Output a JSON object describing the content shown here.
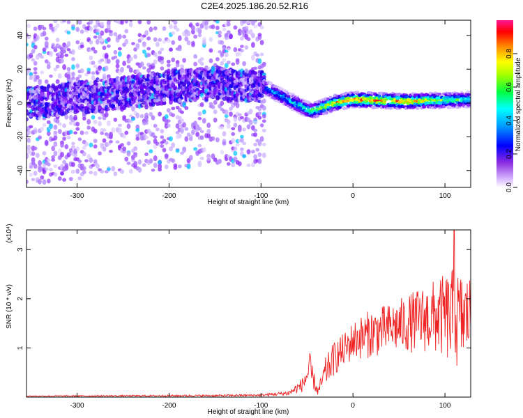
{
  "title": "C2E4.2025.186.20.52.R16",
  "chart_data": [
    {
      "type": "heatmap",
      "xlabel": "Height of straight line (km)",
      "ylabel": "Frequency (Hz)",
      "xlim": [
        -355,
        128
      ],
      "ylim": [
        -50,
        49
      ],
      "x_ticks": [
        -300,
        -200,
        -100,
        0,
        100
      ],
      "x_tick_labels": [
        "-300",
        "-200",
        "-100",
        "0",
        "100"
      ],
      "y_ticks": [
        -40,
        -20,
        0,
        20,
        40
      ],
      "y_tick_labels": [
        "-40",
        "-20",
        "0",
        "20",
        "40"
      ],
      "colorbar": {
        "label": "Normalized spectral amplitude",
        "range": [
          0,
          1
        ],
        "ticks": [
          0.0,
          0.2,
          0.4,
          0.6,
          0.8
        ],
        "tick_labels": [
          "0.0",
          "0.2",
          "0.4",
          "0.6",
          "0.8"
        ],
        "colormap": [
          "#ffffff",
          "#b48cff",
          "#7a00ff",
          "#3a00e0",
          "#0000ff",
          "#00a0ff",
          "#00ffff",
          "#00ff60",
          "#a0ff00",
          "#ffff00",
          "#ff9000",
          "#ff0000",
          "#ff0090"
        ]
      },
      "ridge": {
        "description_points": [
          {
            "x": -350,
            "freq": 0,
            "amp": 0.2
          },
          {
            "x": -150,
            "freq": 12,
            "amp": 0.45
          },
          {
            "x": -95,
            "freq": 9,
            "amp": 0.45
          },
          {
            "x": -60,
            "freq": -1,
            "amp": 0.55
          },
          {
            "x": -45,
            "freq": -5,
            "amp": 0.7
          },
          {
            "x": -20,
            "freq": 0,
            "amp": 0.85
          },
          {
            "x": 0,
            "freq": 2,
            "amp": 0.95
          },
          {
            "x": 60,
            "freq": 1,
            "amp": 0.9
          },
          {
            "x": 125,
            "freq": 2,
            "amp": 0.6
          }
        ]
      },
      "grid": false
    },
    {
      "type": "line",
      "xlabel": "Height of straight line (km)",
      "ylabel": "SNR (10 * v/v)",
      "y_multiplier_label": "(x10⁴)",
      "xlim": [
        -355,
        128
      ],
      "ylim": [
        0,
        3.4
      ],
      "x_ticks": [
        -300,
        -200,
        -100,
        0,
        100
      ],
      "x_tick_labels": [
        "-300",
        "-200",
        "-100",
        "0",
        "100"
      ],
      "y_ticks": [
        1,
        2,
        3
      ],
      "y_tick_labels": [
        "1",
        "2",
        "3"
      ],
      "color": "#ee2222",
      "envelope": {
        "x": [
          -355,
          -150,
          -100,
          -70,
          -55,
          -47,
          -43,
          -38,
          -30,
          -20,
          -10,
          0,
          20,
          40,
          60,
          80,
          100,
          110,
          120,
          128
        ],
        "mean": [
          0.02,
          0.03,
          0.04,
          0.08,
          0.25,
          0.55,
          0.35,
          0.1,
          0.5,
          0.8,
          0.95,
          1.15,
          1.3,
          1.4,
          1.5,
          1.6,
          1.65,
          1.55,
          1.6,
          1.7
        ],
        "spread": [
          0.01,
          0.02,
          0.02,
          0.05,
          0.15,
          0.35,
          0.2,
          0.08,
          0.3,
          0.35,
          0.35,
          0.4,
          0.5,
          0.5,
          0.6,
          0.7,
          0.85,
          1.1,
          0.9,
          0.8
        ]
      },
      "peak": {
        "x": 110,
        "y": 3.4
      },
      "grid": false
    }
  ]
}
